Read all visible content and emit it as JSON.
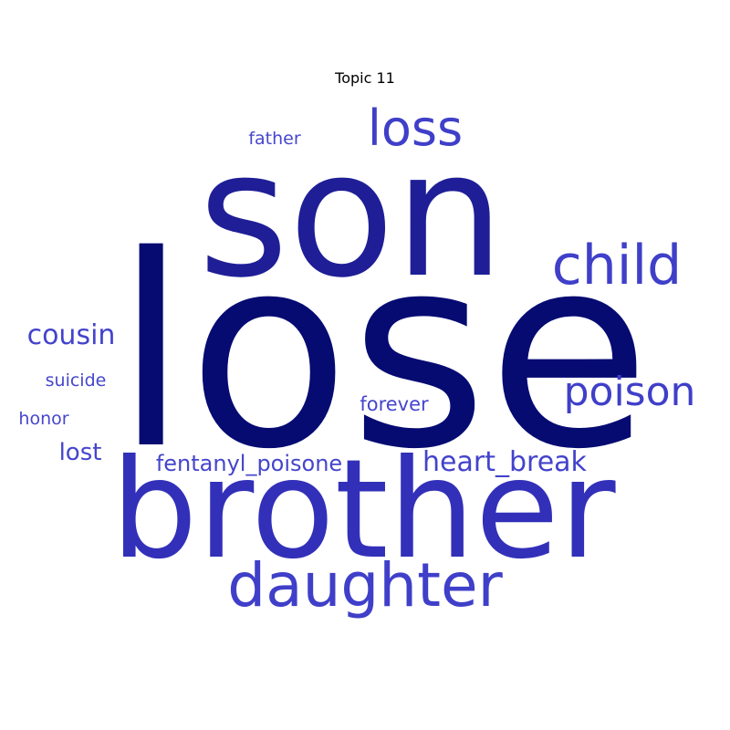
{
  "title": "Topic 11",
  "words": [
    {
      "text": "lose",
      "weight": 1.0,
      "color": "#060b72"
    },
    {
      "text": "son",
      "weight": 0.78,
      "color": "#1f1e97"
    },
    {
      "text": "brother",
      "weight": 0.7,
      "color": "#3230b9"
    },
    {
      "text": "daughter",
      "weight": 0.35,
      "color": "#3f3fc9"
    },
    {
      "text": "loss",
      "weight": 0.3,
      "color": "#3f3fc9"
    },
    {
      "text": "child",
      "weight": 0.3,
      "color": "#3f3fc9"
    },
    {
      "text": "poison",
      "weight": 0.24,
      "color": "#3f3fc9"
    },
    {
      "text": "cousin",
      "weight": 0.16,
      "color": "#4343cc"
    },
    {
      "text": "heart_break",
      "weight": 0.16,
      "color": "#4343cc"
    },
    {
      "text": "fentanyl_poisone",
      "weight": 0.13,
      "color": "#4545cd"
    },
    {
      "text": "lost",
      "weight": 0.13,
      "color": "#4545cd"
    },
    {
      "text": "forever",
      "weight": 0.11,
      "color": "#4545cd"
    },
    {
      "text": "suicide",
      "weight": 0.1,
      "color": "#4646ce"
    },
    {
      "text": "father",
      "weight": 0.1,
      "color": "#4646ce"
    },
    {
      "text": "honor",
      "weight": 0.1,
      "color": "#4646ce"
    }
  ]
}
